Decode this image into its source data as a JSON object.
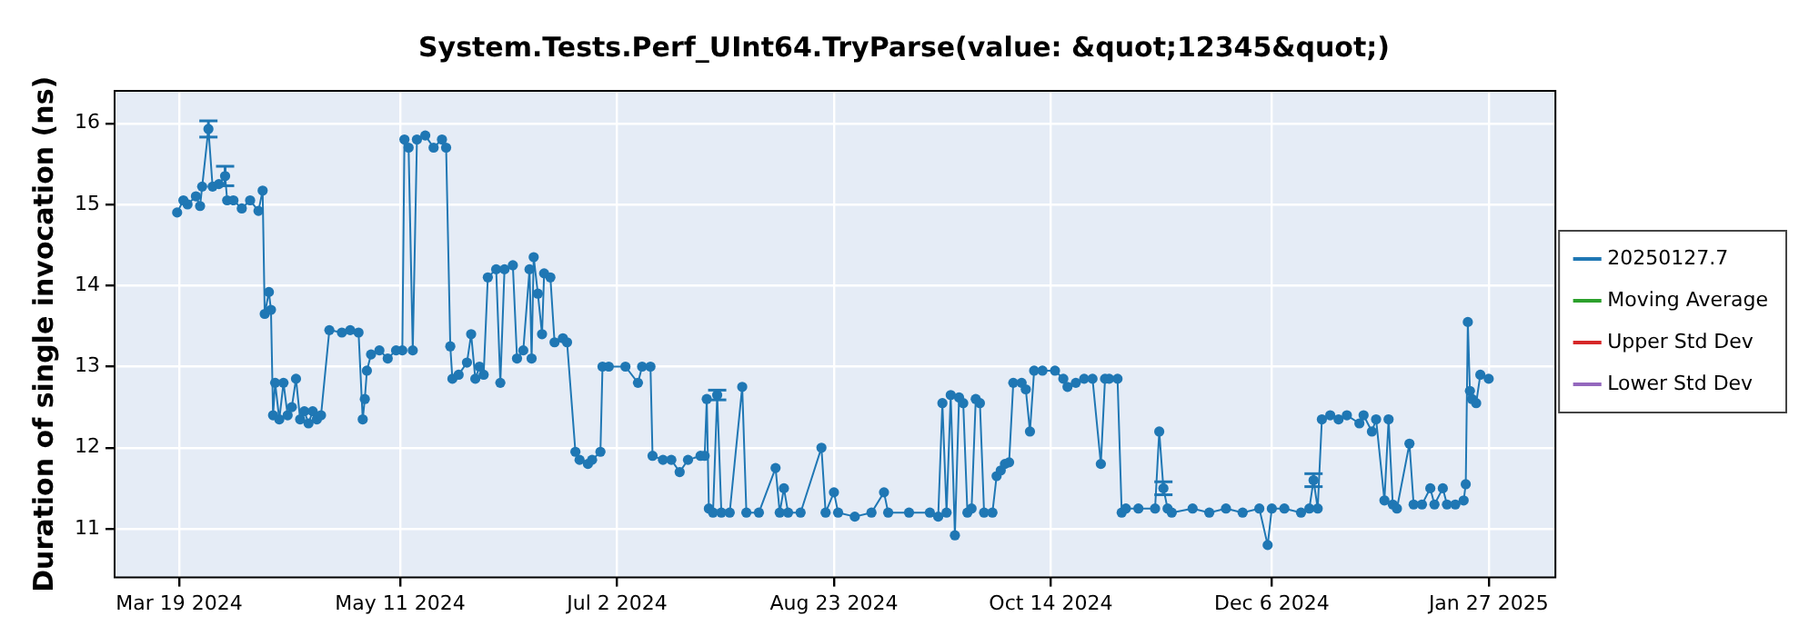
{
  "chart_data": {
    "type": "line",
    "title": "System.Tests.Perf_UInt64.TryParse(value: &quot;12345&quot;)",
    "ylabel": "Duration of single invocation (ns)",
    "xlim": [
      "2024-03-03T12:00",
      "2025-02-12T00:00"
    ],
    "xticks": [
      {
        "value": "2024-03-19",
        "label": "Mar 19 2024"
      },
      {
        "value": "2024-05-11",
        "label": "May 11 2024"
      },
      {
        "value": "2024-07-02",
        "label": "Jul 2 2024"
      },
      {
        "value": "2024-08-23",
        "label": "Aug 23 2024"
      },
      {
        "value": "2024-10-14",
        "label": "Oct 14 2024"
      },
      {
        "value": "2024-12-06",
        "label": "Dec 6 2024"
      },
      {
        "value": "2025-01-27",
        "label": "Jan 27 2025"
      }
    ],
    "ylim": [
      10.4,
      16.4
    ],
    "yticks": [
      11,
      12,
      13,
      14,
      15,
      16
    ],
    "grid": true,
    "legend": "right",
    "marker": "circle",
    "line_style": "solid",
    "series": [
      {
        "name": "20250127.7",
        "color": "#1f77b4",
        "x": [
          "2024-03-18T12:00",
          "2024-03-20",
          "2024-03-21",
          "2024-03-23",
          "2024-03-24",
          "2024-03-24T12:00",
          "2024-03-26",
          "2024-03-27",
          "2024-03-28T12:00",
          "2024-03-30",
          "2024-03-30T12:00",
          "2024-04-01",
          "2024-04-03",
          "2024-04-05",
          "2024-04-07",
          "2024-04-08",
          "2024-04-08T12:00",
          "2024-04-09T12:00",
          "2024-04-10",
          "2024-04-10T12:00",
          "2024-04-11",
          "2024-04-12",
          "2024-04-13",
          "2024-04-14",
          "2024-04-15",
          "2024-04-16",
          "2024-04-17",
          "2024-04-18",
          "2024-04-19",
          "2024-04-20",
          "2024-04-21",
          "2024-04-22",
          "2024-04-24",
          "2024-04-27",
          "2024-04-29",
          "2024-05-01",
          "2024-05-02",
          "2024-05-02T12:00",
          "2024-05-03",
          "2024-05-04",
          "2024-05-06",
          "2024-05-08",
          "2024-05-10",
          "2024-05-11T12:00",
          "2024-05-12",
          "2024-05-13",
          "2024-05-14",
          "2024-05-15",
          "2024-05-17",
          "2024-05-19",
          "2024-05-21",
          "2024-05-22",
          "2024-05-23",
          "2024-05-23T12:00",
          "2024-05-25",
          "2024-05-27",
          "2024-05-28",
          "2024-05-29",
          "2024-05-30",
          "2024-05-31",
          "2024-06-01",
          "2024-06-03",
          "2024-06-04",
          "2024-06-05",
          "2024-06-07",
          "2024-06-08",
          "2024-06-09T12:00",
          "2024-06-11",
          "2024-06-11T12:00",
          "2024-06-12",
          "2024-06-13",
          "2024-06-14",
          "2024-06-14T12:00",
          "2024-06-16",
          "2024-06-17",
          "2024-06-19",
          "2024-06-20",
          "2024-06-22",
          "2024-06-23",
          "2024-06-25",
          "2024-06-26",
          "2024-06-28",
          "2024-06-28T12:00",
          "2024-06-30",
          "2024-07-04",
          "2024-07-07",
          "2024-07-08",
          "2024-07-10",
          "2024-07-10T12:00",
          "2024-07-13",
          "2024-07-15",
          "2024-07-17",
          "2024-07-19",
          "2024-07-22",
          "2024-07-23",
          "2024-07-23T12:00",
          "2024-07-24",
          "2024-07-25",
          "2024-07-26",
          "2024-07-27",
          "2024-07-29",
          "2024-08-01",
          "2024-08-02",
          "2024-08-05",
          "2024-08-09",
          "2024-08-10",
          "2024-08-11",
          "2024-08-12",
          "2024-08-15",
          "2024-08-20",
          "2024-08-21",
          "2024-08-23",
          "2024-08-24",
          "2024-08-28",
          "2024-09-01",
          "2024-09-04",
          "2024-09-05",
          "2024-09-10",
          "2024-09-15",
          "2024-09-17",
          "2024-09-18",
          "2024-09-19",
          "2024-09-20",
          "2024-09-21",
          "2024-09-22",
          "2024-09-23",
          "2024-09-24",
          "2024-09-25",
          "2024-09-26",
          "2024-09-27",
          "2024-09-28",
          "2024-09-30",
          "2024-10-01",
          "2024-10-02",
          "2024-10-03",
          "2024-10-04",
          "2024-10-05",
          "2024-10-07",
          "2024-10-08",
          "2024-10-09",
          "2024-10-10",
          "2024-10-12",
          "2024-10-15",
          "2024-10-17",
          "2024-10-18",
          "2024-10-20",
          "2024-10-22",
          "2024-10-24",
          "2024-10-26",
          "2024-10-27",
          "2024-10-28",
          "2024-10-30",
          "2024-10-31",
          "2024-11-01",
          "2024-11-04",
          "2024-11-08",
          "2024-11-09",
          "2024-11-10",
          "2024-11-11",
          "2024-11-12",
          "2024-11-17",
          "2024-11-21",
          "2024-11-25",
          "2024-11-29",
          "2024-12-03",
          "2024-12-05",
          "2024-12-06",
          "2024-12-09",
          "2024-12-13",
          "2024-12-15",
          "2024-12-16",
          "2024-12-17",
          "2024-12-18",
          "2024-12-20",
          "2024-12-22",
          "2024-12-24",
          "2024-12-27",
          "2024-12-28",
          "2024-12-30",
          "2024-12-31",
          "2025-01-02",
          "2025-01-03",
          "2025-01-04",
          "2025-01-05",
          "2025-01-08",
          "2025-01-09",
          "2025-01-11",
          "2025-01-13",
          "2025-01-14",
          "2025-01-16",
          "2025-01-17",
          "2025-01-19",
          "2025-01-21",
          "2025-01-21T12:00",
          "2025-01-22",
          "2025-01-22T12:00",
          "2025-01-23",
          "2025-01-24",
          "2025-01-25",
          "2025-01-27"
        ],
        "values": [
          14.9,
          15.05,
          15.0,
          15.1,
          14.98,
          15.22,
          15.93,
          15.22,
          15.25,
          15.35,
          15.05,
          15.05,
          14.95,
          15.05,
          14.92,
          15.17,
          13.65,
          13.92,
          13.7,
          12.4,
          12.8,
          12.35,
          12.8,
          12.4,
          12.5,
          12.85,
          12.35,
          12.45,
          12.3,
          12.45,
          12.35,
          12.4,
          13.45,
          13.42,
          13.45,
          13.42,
          12.35,
          12.6,
          12.95,
          13.15,
          13.2,
          13.1,
          13.2,
          13.2,
          15.8,
          15.7,
          13.2,
          15.8,
          15.85,
          15.7,
          15.8,
          15.7,
          13.25,
          12.85,
          12.9,
          13.05,
          13.4,
          12.85,
          13.0,
          12.9,
          14.1,
          14.2,
          12.8,
          14.2,
          14.25,
          13.1,
          13.2,
          14.2,
          13.1,
          14.35,
          13.9,
          13.4,
          14.15,
          14.1,
          13.3,
          13.35,
          13.3,
          11.95,
          11.85,
          11.8,
          11.85,
          11.95,
          13.0,
          13.0,
          13.0,
          12.8,
          13.0,
          13.0,
          11.9,
          11.85,
          11.85,
          11.7,
          11.85,
          11.9,
          11.9,
          12.6,
          11.25,
          11.2,
          12.65,
          11.2,
          11.2,
          12.75,
          11.2,
          11.2,
          11.75,
          11.2,
          11.5,
          11.2,
          11.2,
          12.0,
          11.2,
          11.45,
          11.2,
          11.15,
          11.2,
          11.45,
          11.2,
          11.2,
          11.2,
          11.15,
          12.55,
          11.2,
          12.65,
          10.92,
          12.62,
          12.55,
          11.2,
          11.25,
          12.6,
          12.55,
          11.2,
          11.2,
          11.65,
          11.72,
          11.8,
          11.82,
          12.8,
          12.8,
          12.72,
          12.2,
          12.95,
          12.95,
          12.95,
          12.85,
          12.75,
          12.8,
          12.85,
          12.85,
          11.8,
          12.85,
          12.85,
          12.85,
          11.2,
          11.25,
          11.25,
          11.25,
          12.2,
          11.5,
          11.25,
          11.2,
          11.25,
          11.2,
          11.25,
          11.2,
          11.25,
          10.8,
          11.25,
          11.25,
          11.2,
          11.25,
          11.6,
          11.25,
          12.35,
          12.4,
          12.35,
          12.4,
          12.3,
          12.4,
          12.2,
          12.35,
          11.35,
          12.35,
          11.3,
          11.25,
          12.05,
          11.3,
          11.3,
          11.5,
          11.3,
          11.5,
          11.3,
          11.3,
          11.35,
          11.55,
          13.55,
          12.7,
          12.6,
          12.55,
          12.9,
          12.85
        ],
        "errors": [
          null,
          null,
          null,
          null,
          null,
          null,
          0.1,
          null,
          null,
          0.12,
          null,
          null,
          null,
          null,
          null,
          null,
          null,
          null,
          null,
          null,
          null,
          null,
          null,
          null,
          null,
          null,
          null,
          null,
          null,
          null,
          null,
          null,
          null,
          null,
          null,
          null,
          null,
          null,
          null,
          null,
          null,
          null,
          null,
          null,
          null,
          null,
          null,
          null,
          null,
          null,
          null,
          null,
          null,
          null,
          null,
          null,
          null,
          null,
          null,
          null,
          null,
          null,
          null,
          null,
          null,
          null,
          null,
          null,
          null,
          null,
          null,
          null,
          null,
          null,
          null,
          null,
          null,
          null,
          null,
          null,
          null,
          null,
          null,
          null,
          null,
          null,
          null,
          null,
          null,
          null,
          null,
          null,
          null,
          null,
          null,
          null,
          null,
          null,
          0.06,
          null,
          null,
          null,
          null,
          null,
          null,
          null,
          null,
          null,
          null,
          null,
          null,
          null,
          null,
          null,
          null,
          null,
          null,
          null,
          null,
          null,
          null,
          null,
          null,
          null,
          null,
          null,
          null,
          null,
          null,
          null,
          null,
          null,
          null,
          null,
          null,
          null,
          null,
          null,
          null,
          null,
          null,
          null,
          null,
          null,
          null,
          null,
          null,
          null,
          null,
          null,
          null,
          null,
          null,
          null,
          null,
          null,
          null,
          0.08,
          null,
          null,
          null,
          null,
          null,
          null,
          null,
          null,
          null,
          null,
          null,
          null,
          0.08,
          null,
          null,
          null,
          null,
          null,
          null,
          null,
          null,
          null,
          null,
          null,
          null,
          null,
          null,
          null,
          null,
          null,
          null,
          null,
          null,
          null,
          null,
          null,
          null,
          null,
          null,
          null,
          null,
          null
        ]
      },
      {
        "name": "Moving Average",
        "color": "#2ca02c"
      },
      {
        "name": "Upper Std Dev",
        "color": "#d62728"
      },
      {
        "name": "Lower Std Dev",
        "color": "#9467bd"
      }
    ]
  }
}
